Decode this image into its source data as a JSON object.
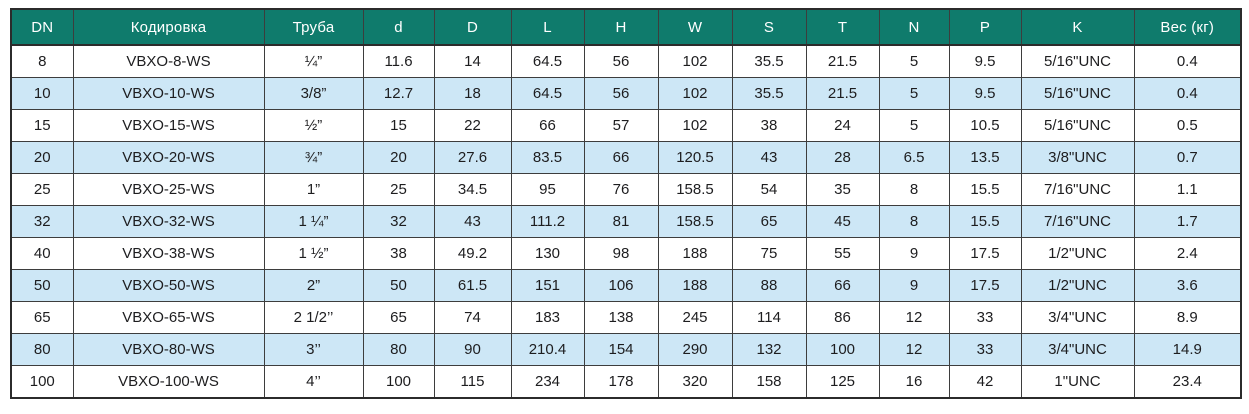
{
  "table": {
    "title": "valve-dimensions-spec-table",
    "colors": {
      "header_bg": "#0f7b6c",
      "header_text": "#ffffff",
      "row_bg": "#ffffff",
      "row_alt_bg": "#cde7f6",
      "border": "#3d3d3d",
      "text": "#1d1d1f"
    },
    "columns": [
      {
        "key": "dn",
        "label": "DN",
        "width": 62
      },
      {
        "key": "kodirovka",
        "label": "Кодировка",
        "width": 191
      },
      {
        "key": "truba",
        "label": "Труба",
        "width": 99
      },
      {
        "key": "d-small",
        "label": "d",
        "width": 71
      },
      {
        "key": "d-big",
        "label": "D",
        "width": 77
      },
      {
        "key": "l",
        "label": "L",
        "width": 73
      },
      {
        "key": "h",
        "label": "H",
        "width": 74
      },
      {
        "key": "w",
        "label": "W",
        "width": 74
      },
      {
        "key": "s",
        "label": "S",
        "width": 74
      },
      {
        "key": "t",
        "label": "T",
        "width": 73
      },
      {
        "key": "n",
        "label": "N",
        "width": 70
      },
      {
        "key": "p",
        "label": "P",
        "width": 72
      },
      {
        "key": "k",
        "label": "K",
        "width": 113
      },
      {
        "key": "ves",
        "label": "Вес (кг)",
        "width": 107
      }
    ],
    "rows": [
      [
        "8",
        "VBXO-8-WS",
        "¼”",
        "11.6",
        "14",
        "64.5",
        "56",
        "102",
        "35.5",
        "21.5",
        "5",
        "9.5",
        "5/16\"UNC",
        "0.4"
      ],
      [
        "10",
        "VBXO-10-WS",
        "3/8”",
        "12.7",
        "18",
        "64.5",
        "56",
        "102",
        "35.5",
        "21.5",
        "5",
        "9.5",
        "5/16\"UNC",
        "0.4"
      ],
      [
        "15",
        "VBXO-15-WS",
        "½”",
        "15",
        "22",
        "66",
        "57",
        "102",
        "38",
        "24",
        "5",
        "10.5",
        "5/16\"UNC",
        "0.5"
      ],
      [
        "20",
        "VBXO-20-WS",
        "¾”",
        "20",
        "27.6",
        "83.5",
        "66",
        "120.5",
        "43",
        "28",
        "6.5",
        "13.5",
        "3/8\"UNC",
        "0.7"
      ],
      [
        "25",
        "VBXO-25-WS",
        "1”",
        "25",
        "34.5",
        "95",
        "76",
        "158.5",
        "54",
        "35",
        "8",
        "15.5",
        "7/16\"UNC",
        "1.1"
      ],
      [
        "32",
        "VBXO-32-WS",
        "1 ¼”",
        "32",
        "43",
        "111.2",
        "81",
        "158.5",
        "65",
        "45",
        "8",
        "15.5",
        "7/16\"UNC",
        "1.7"
      ],
      [
        "40",
        "VBXO-38-WS",
        "1 ½”",
        "38",
        "49.2",
        "130",
        "98",
        "188",
        "75",
        "55",
        "9",
        "17.5",
        "1/2\"UNC",
        "2.4"
      ],
      [
        "50",
        "VBXO-50-WS",
        "2”",
        "50",
        "61.5",
        "151",
        "106",
        "188",
        "88",
        "66",
        "9",
        "17.5",
        "1/2\"UNC",
        "3.6"
      ],
      [
        "65",
        "VBXO-65-WS",
        "2 1/2’’",
        "65",
        "74",
        "183",
        "138",
        "245",
        "114",
        "86",
        "12",
        "33",
        "3/4\"UNC",
        "8.9"
      ],
      [
        "80",
        "VBXO-80-WS",
        "3’’",
        "80",
        "90",
        "210.4",
        "154",
        "290",
        "132",
        "100",
        "12",
        "33",
        "3/4\"UNC",
        "14.9"
      ],
      [
        "100",
        "VBXO-100-WS",
        "4’’",
        "100",
        "115",
        "234",
        "178",
        "320",
        "158",
        "125",
        "16",
        "42",
        "1\"UNC",
        "23.4"
      ]
    ]
  }
}
